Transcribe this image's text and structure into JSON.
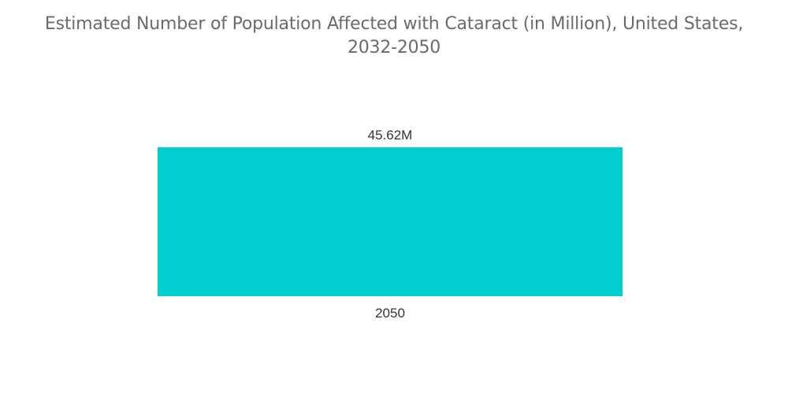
{
  "chart_data": {
    "type": "bar",
    "title_line1": "Estimated Number of Population Affected with Cataract (in Million), United States,",
    "title_line2": "2032-2050",
    "categories": [
      "2050"
    ],
    "values": [
      45.62
    ],
    "data_labels": [
      "45.62M"
    ],
    "xlabel": "",
    "ylabel": "",
    "ylim": [
      0,
      45.62
    ],
    "grid": false,
    "legend": "none",
    "bar_color": "#00CED1"
  }
}
